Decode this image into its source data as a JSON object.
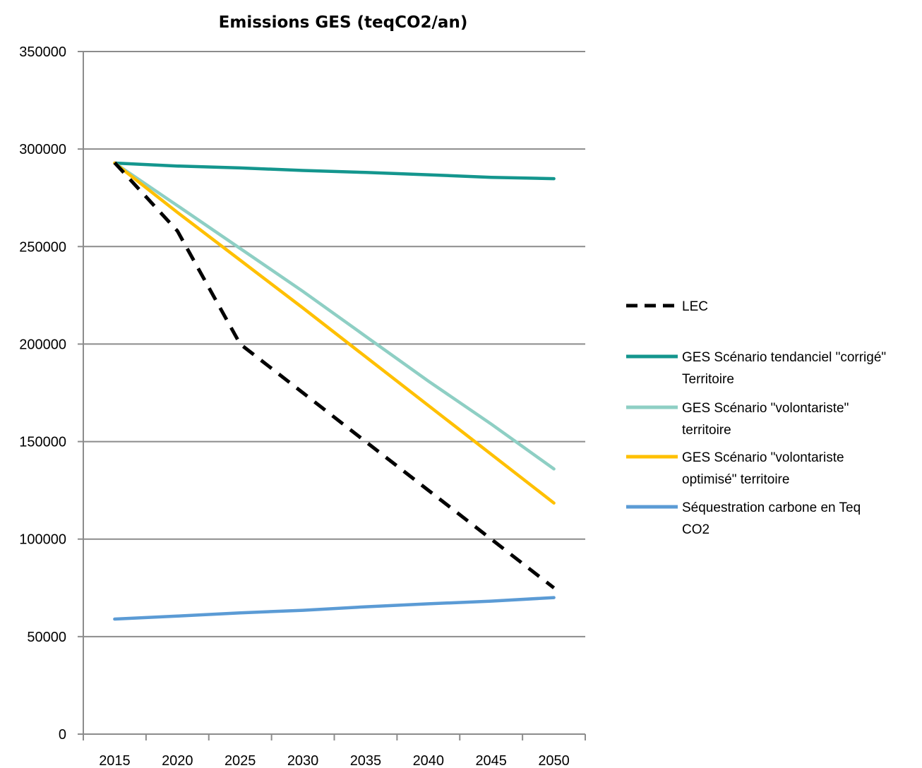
{
  "chart_data": {
    "type": "line",
    "title": "Emissions GES (teqCO2/an)",
    "xlabel": "",
    "ylabel": "",
    "x": [
      "2015",
      "2020",
      "2025",
      "2030",
      "2035",
      "2040",
      "2045",
      "2050"
    ],
    "ylim": [
      0,
      350000
    ],
    "yticks": [
      "0",
      "50000",
      "100000",
      "150000",
      "200000",
      "250000",
      "300000",
      "350000"
    ],
    "grid": "horizontal",
    "legend_position": "right",
    "series": [
      {
        "name": "LEC",
        "color": "#000000",
        "dashed": true,
        "values": [
          293000,
          258000,
          200000,
          175000,
          150000,
          125000,
          100000,
          75000
        ]
      },
      {
        "name": "GES Scénario tendanciel \"corrigé\" Territoire",
        "legend_lines": [
          "GES Scénario tendanciel \"corrigé\"",
          "Territoire"
        ],
        "color": "#14968E",
        "dashed": false,
        "values": [
          292800,
          291300,
          290300,
          289000,
          288000,
          286800,
          285500,
          284800
        ]
      },
      {
        "name": "GES Scénario \"volontariste\" territoire",
        "legend_lines": [
          "GES Scénario \"volontariste\"",
          "territoire"
        ],
        "color": "#8ECFC4",
        "dashed": false,
        "values": [
          292800,
          271000,
          249000,
          227000,
          204000,
          181000,
          159000,
          136000
        ]
      },
      {
        "name": "GES Scénario \"volontariste optimisé\" territoire",
        "legend_lines": [
          "GES Scénario \"volontariste",
          "optimisé\" territoire"
        ],
        "color": "#FFC000",
        "dashed": false,
        "values": [
          292800,
          267500,
          243000,
          218500,
          193500,
          168500,
          143500,
          118500
        ]
      },
      {
        "name": "Séquestration carbone en Teq CO2",
        "legend_lines": [
          "Séquestration carbone en Teq",
          "CO2"
        ],
        "color": "#5B9BD5",
        "dashed": false,
        "values": [
          59000,
          60500,
          62200,
          63500,
          65300,
          66800,
          68200,
          70000
        ]
      }
    ]
  }
}
